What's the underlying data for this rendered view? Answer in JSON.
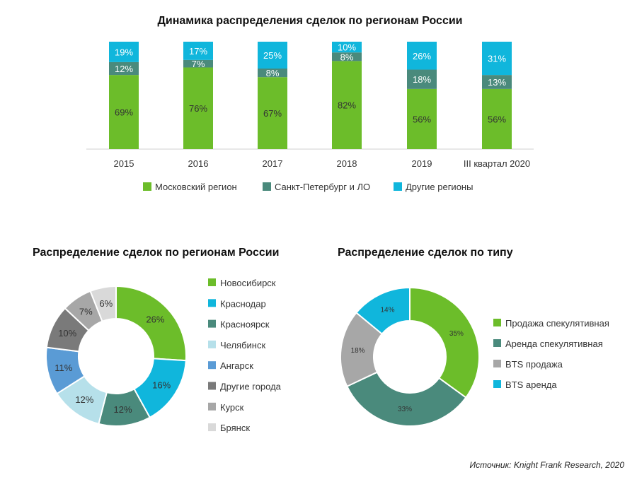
{
  "colors": {
    "green": "#6cbd2a",
    "teal": "#4a8a7c",
    "cyan": "#10b6dc",
    "light_blue": "#b6e0ea",
    "blue": "#5a9bd5",
    "dark_gray": "#7a7a7a",
    "gray": "#a7a7a7",
    "light_gray": "#d9d9d9"
  },
  "source": "Источник: Knight Frank Research, 2020",
  "chart_data": [
    {
      "type": "bar",
      "stacked": true,
      "percent": true,
      "title": "Динамика распределения сделок по регионам России",
      "categories": [
        "2015",
        "2016",
        "2017",
        "2018",
        "2019",
        "III квартал 2020"
      ],
      "series": [
        {
          "name": "Московский регион",
          "color": "#6cbd2a",
          "values": [
            69,
            76,
            67,
            82,
            56,
            56
          ]
        },
        {
          "name": "Санкт-Петербург и ЛО",
          "color": "#4a8a7c",
          "values": [
            12,
            7,
            8,
            8,
            18,
            13
          ]
        },
        {
          "name": "Другие регионы",
          "color": "#10b6dc",
          "values": [
            19,
            17,
            25,
            10,
            26,
            31
          ]
        }
      ],
      "legend": "bottom"
    },
    {
      "type": "pie",
      "donut": true,
      "title": "Распределение сделок по регионам России",
      "legend": "right",
      "slices": [
        {
          "label": "Новосибирск",
          "value": 26,
          "color": "#6cbd2a"
        },
        {
          "label": "Краснодар",
          "value": 16,
          "color": "#10b6dc"
        },
        {
          "label": "Красноярск",
          "value": 12,
          "color": "#4a8a7c"
        },
        {
          "label": "Челябинск",
          "value": 12,
          "color": "#b6e0ea"
        },
        {
          "label": "Ангарск",
          "value": 11,
          "color": "#5a9bd5"
        },
        {
          "label": "Другие города",
          "value": 10,
          "color": "#7a7a7a"
        },
        {
          "label": "Курск",
          "value": 7,
          "color": "#a7a7a7"
        },
        {
          "label": "Брянск",
          "value": 6,
          "color": "#d9d9d9"
        }
      ]
    },
    {
      "type": "pie",
      "donut": true,
      "title": "Распределение сделок по типу",
      "legend": "right",
      "slices": [
        {
          "label": "Продажа спекулятивная",
          "value": 35,
          "color": "#6cbd2a"
        },
        {
          "label": "Аренда спекулятивная",
          "value": 33,
          "color": "#4a8a7c"
        },
        {
          "label": "BTS продажа",
          "value": 18,
          "color": "#a7a7a7"
        },
        {
          "label": "BTS аренда",
          "value": 14,
          "color": "#10b6dc"
        }
      ]
    }
  ]
}
